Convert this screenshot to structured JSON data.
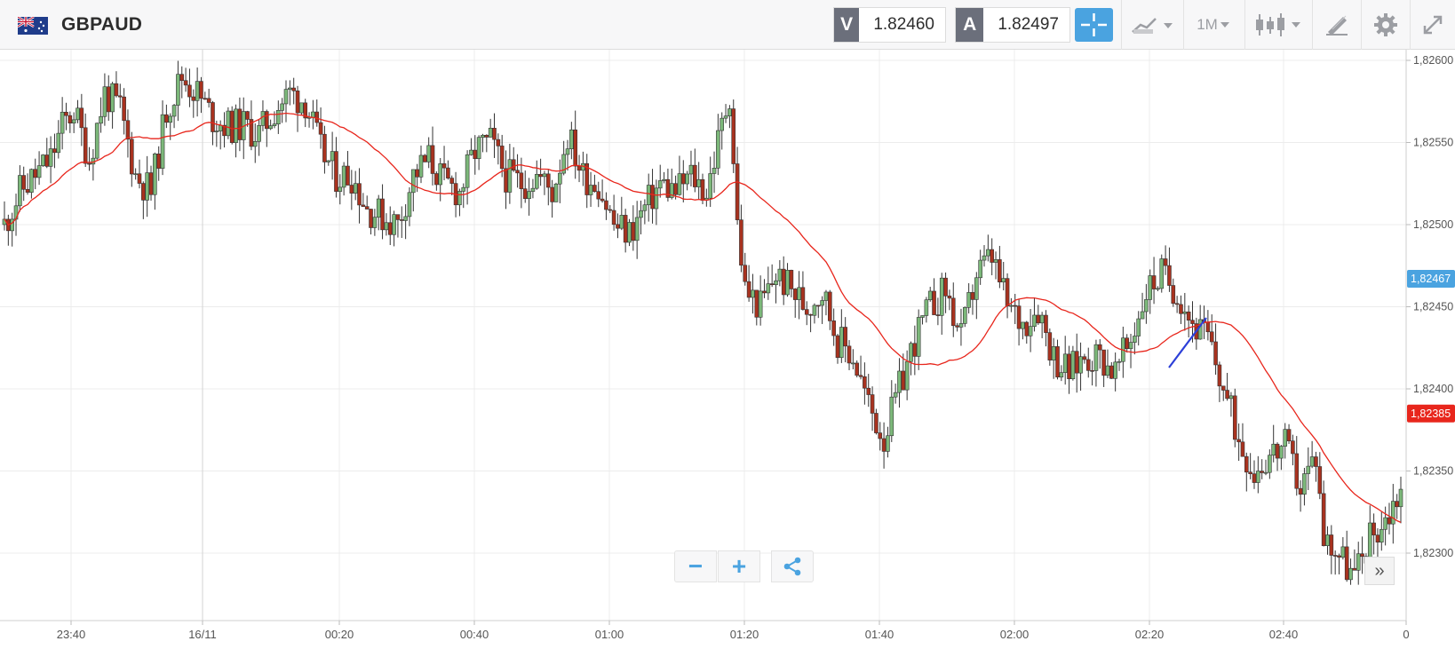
{
  "header": {
    "symbol": "GBPAUD",
    "sell": {
      "label": "V",
      "price": "1.82460"
    },
    "buy": {
      "label": "A",
      "price": "1.82497"
    },
    "timeframe": "1M",
    "icons": [
      "flag-gb-au-icon",
      "crosshair-icon",
      "chart-type-icon",
      "candles-icon",
      "draw-icon",
      "gear-icon",
      "fullscreen-icon"
    ]
  },
  "chart_data": {
    "type": "candlestick",
    "title": "GBPAUD",
    "interval": "1M",
    "x_tick_labels": [
      "23:40",
      "16/11",
      "00:20",
      "00:40",
      "01:00",
      "01:20",
      "01:40",
      "02:00",
      "02:20",
      "02:40",
      "0"
    ],
    "y_tick_labels": [
      "1,82600",
      "1,82550",
      "1,82500",
      "1,82450",
      "1,82400",
      "1,82350",
      "1,82300"
    ],
    "ylim": [
      1.8226,
      1.8261
    ],
    "grid": true,
    "price_markers": [
      {
        "label": "1,82467",
        "value": 1.82467,
        "color": "#4aa3e0"
      },
      {
        "label": "1,82385",
        "value": 1.82385,
        "color": "#e8261c"
      }
    ],
    "moving_average_color": "#e8261c",
    "up_color": "#7cb87a",
    "down_color": "#a8321f",
    "drawing": {
      "type": "trendline",
      "color": "#2c3fd8"
    }
  },
  "controls": {
    "zoom_out": "−",
    "zoom_in": "+",
    "share": "share-icon",
    "next": "»"
  }
}
